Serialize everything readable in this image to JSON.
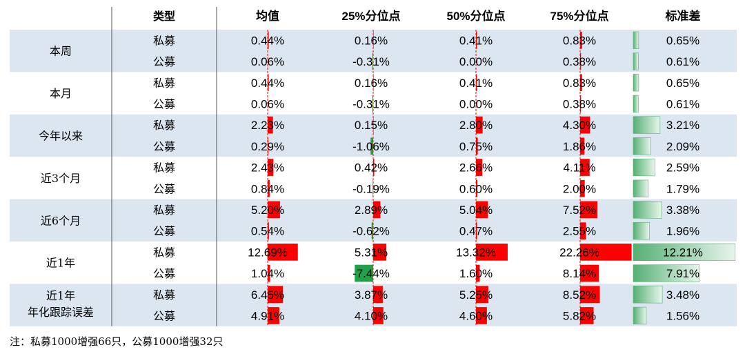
{
  "chart_data": {
    "type": "table",
    "headers": [
      "",
      "类型",
      "均值",
      "25%分位点",
      "50%分位点",
      "75%分位点",
      "标准差"
    ],
    "groups": [
      {
        "period": [
          "本周"
        ],
        "rows": [
          {
            "type": "私募",
            "values": [
              0.44,
              0.16,
              0.41,
              0.83,
              0.65
            ]
          },
          {
            "type": "公募",
            "values": [
              0.06,
              -0.31,
              0.0,
              0.38,
              0.61
            ]
          }
        ]
      },
      {
        "period": [
          "本月"
        ],
        "rows": [
          {
            "type": "私募",
            "values": [
              0.44,
              0.16,
              0.41,
              0.83,
              0.65
            ]
          },
          {
            "type": "公募",
            "values": [
              0.06,
              -0.31,
              0.0,
              0.38,
              0.61
            ]
          }
        ]
      },
      {
        "period": [
          "今年以来"
        ],
        "rows": [
          {
            "type": "私募",
            "values": [
              2.23,
              0.15,
              2.8,
              4.3,
              3.21
            ]
          },
          {
            "type": "公募",
            "values": [
              0.29,
              -1.06,
              0.75,
              1.86,
              2.09
            ]
          }
        ]
      },
      {
        "period": [
          "近3个月"
        ],
        "rows": [
          {
            "type": "私募",
            "values": [
              2.43,
              0.42,
              2.66,
              4.11,
              2.59
            ]
          },
          {
            "type": "公募",
            "values": [
              0.84,
              -0.19,
              0.6,
              2.0,
              1.79
            ]
          }
        ]
      },
      {
        "period": [
          "近6个月"
        ],
        "rows": [
          {
            "type": "私募",
            "values": [
              5.2,
              2.89,
              5.04,
              7.52,
              3.38
            ]
          },
          {
            "type": "公募",
            "values": [
              0.54,
              -0.62,
              0.47,
              2.55,
              1.96
            ]
          }
        ]
      },
      {
        "period": [
          "近1年"
        ],
        "rows": [
          {
            "type": "私募",
            "values": [
              12.69,
              5.31,
              13.32,
              22.26,
              12.21
            ]
          },
          {
            "type": "公募",
            "values": [
              1.04,
              -7.44,
              1.6,
              8.14,
              7.91
            ]
          }
        ]
      },
      {
        "period": [
          "近1年",
          "年化跟踪误差"
        ],
        "rows": [
          {
            "type": "私募",
            "values": [
              6.45,
              3.87,
              5.25,
              8.52,
              3.48
            ]
          },
          {
            "type": "公募",
            "values": [
              4.91,
              4.1,
              4.6,
              5.82,
              1.56
            ]
          }
        ]
      }
    ],
    "value_format": "percent_2dp",
    "colors": {
      "band": "#dce6f1",
      "bar_positive": "#ff0000",
      "bar_negative": "#1fa24a",
      "std_bar_dark": "#55b074",
      "std_bar_light": "#e8f5ec"
    }
  },
  "note": "注：私募1000增强66只，公募1000增强32只"
}
